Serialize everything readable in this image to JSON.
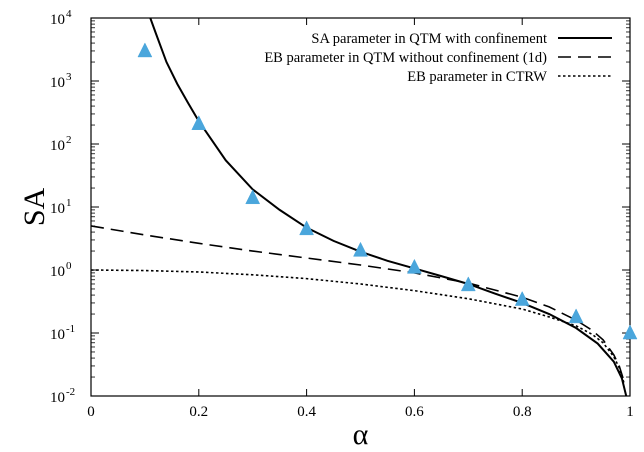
{
  "chart_data": {
    "type": "line",
    "xlabel": "α",
    "ylabel": "SA",
    "xlim": [
      0,
      1
    ],
    "ylim": [
      0.01,
      10000
    ],
    "yscale": "log",
    "grid": false,
    "legend_position": "top-right",
    "x_ticks": [
      {
        "value": 0,
        "label": "0"
      },
      {
        "value": 0.2,
        "label": "0.2"
      },
      {
        "value": 0.4,
        "label": "0.4"
      },
      {
        "value": 0.6,
        "label": "0.6"
      },
      {
        "value": 0.8,
        "label": "0.8"
      },
      {
        "value": 1,
        "label": "1"
      }
    ],
    "y_ticks": [
      {
        "value": 0.01,
        "base": "10",
        "exp": "-2"
      },
      {
        "value": 0.1,
        "base": "10",
        "exp": "-1"
      },
      {
        "value": 1,
        "base": "10",
        "exp": "0"
      },
      {
        "value": 10,
        "base": "10",
        "exp": "1"
      },
      {
        "value": 100,
        "base": "10",
        "exp": "2"
      },
      {
        "value": 1000,
        "base": "10",
        "exp": "3"
      },
      {
        "value": 10000,
        "base": "10",
        "exp": "4"
      }
    ],
    "series": [
      {
        "name": "SA parameter in QTM with confinement",
        "style": "solid",
        "color": "#000000",
        "x": [
          0.11,
          0.12,
          0.14,
          0.16,
          0.18,
          0.2,
          0.25,
          0.3,
          0.35,
          0.4,
          0.45,
          0.5,
          0.55,
          0.6,
          0.65,
          0.7,
          0.75,
          0.8,
          0.85,
          0.9,
          0.94,
          0.97,
          0.985,
          0.993
        ],
        "y": [
          10000,
          5800,
          2000,
          900,
          450,
          230,
          55,
          19,
          9,
          4.7,
          2.9,
          1.95,
          1.4,
          1.06,
          0.8,
          0.6,
          0.42,
          0.3,
          0.2,
          0.12,
          0.068,
          0.035,
          0.019,
          0.01
        ]
      },
      {
        "name": "EB parameter in QTM without confinement (1d)",
        "style": "dashed",
        "color": "#000000",
        "x": [
          0,
          0.1,
          0.2,
          0.3,
          0.4,
          0.5,
          0.6,
          0.7,
          0.8,
          0.85,
          0.9,
          0.93,
          0.95,
          0.97,
          0.98,
          0.99
        ],
        "y": [
          5,
          3.6,
          2.65,
          2.0,
          1.55,
          1.2,
          0.9,
          0.62,
          0.37,
          0.26,
          0.16,
          0.11,
          0.078,
          0.045,
          0.03,
          0.016
        ]
      },
      {
        "name": "EB parameter in CTRW",
        "style": "dotted",
        "color": "#000000",
        "x": [
          0,
          0.1,
          0.2,
          0.3,
          0.4,
          0.5,
          0.6,
          0.7,
          0.8,
          0.85,
          0.9,
          0.93,
          0.95,
          0.97,
          0.98,
          0.99
        ],
        "y": [
          1.0,
          0.98,
          0.93,
          0.84,
          0.73,
          0.6,
          0.47,
          0.35,
          0.24,
          0.18,
          0.13,
          0.095,
          0.07,
          0.042,
          0.028,
          0.015
        ]
      },
      {
        "name": "",
        "style": "markers",
        "marker": "triangle",
        "color": "#4aa6dc",
        "x": [
          0.1,
          0.2,
          0.3,
          0.4,
          0.5,
          0.6,
          0.7,
          0.8,
          0.9,
          1.0
        ],
        "y": [
          3000,
          210,
          14,
          4.5,
          2.05,
          1.1,
          0.58,
          0.34,
          0.18,
          0.1
        ]
      }
    ]
  }
}
